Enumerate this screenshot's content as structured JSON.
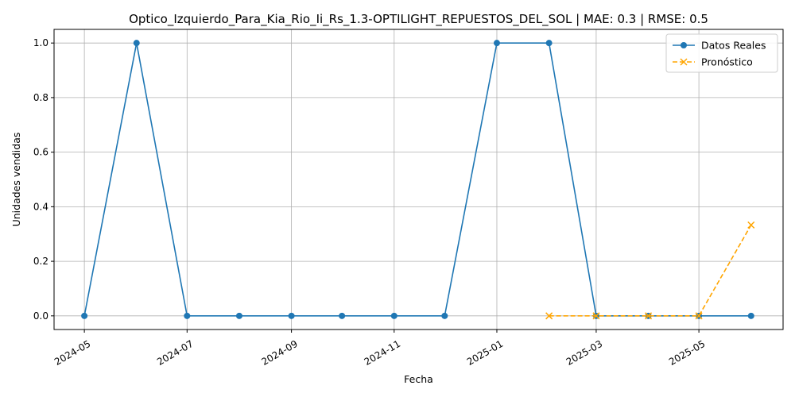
{
  "chart_data": {
    "type": "line",
    "title": "Optico_Izquierdo_Para_Kia_Rio_Ii_Rs_1.3-OPTILIGHT_REPUESTOS_DEL_SOL | MAE: 0.3 | RMSE: 0.5",
    "xlabel": "Fecha",
    "ylabel": "Unidades vendidas",
    "x_ticks": [
      "2024-05",
      "2024-07",
      "2024-09",
      "2024-11",
      "2025-01",
      "2025-03",
      "2025-05"
    ],
    "y_ticks": [
      "0.0",
      "0.2",
      "0.4",
      "0.6",
      "0.8",
      "1.0"
    ],
    "xlim": [
      "2024-04-13",
      "2025-06-20"
    ],
    "ylim": [
      -0.05,
      1.05
    ],
    "grid": true,
    "legend_position": "top-right",
    "series": [
      {
        "name": "Datos Reales",
        "color": "#1f77b4",
        "line_style": "solid",
        "marker": "circle",
        "x": [
          "2024-05-01",
          "2024-06-01",
          "2024-07-01",
          "2024-08-01",
          "2024-09-01",
          "2024-10-01",
          "2024-11-01",
          "2024-12-01",
          "2025-01-01",
          "2025-02-01",
          "2025-03-01",
          "2025-04-01",
          "2025-05-01",
          "2025-06-01"
        ],
        "values": [
          0,
          1,
          0,
          0,
          0,
          0,
          0,
          0,
          1,
          1,
          0,
          0,
          0,
          0
        ]
      },
      {
        "name": "Pronóstico",
        "color": "#ffa500",
        "line_style": "dashed",
        "marker": "x",
        "x": [
          "2025-02-01",
          "2025-03-01",
          "2025-04-01",
          "2025-05-01",
          "2025-06-01"
        ],
        "values": [
          0,
          0,
          0,
          0,
          0.333
        ]
      }
    ]
  }
}
